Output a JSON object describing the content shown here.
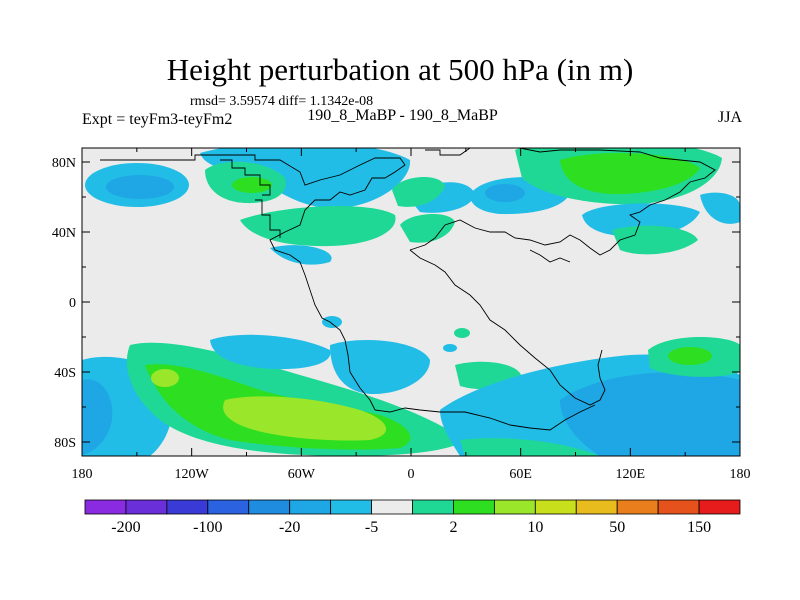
{
  "title": "Height perturbation at 500 hPa (in m)",
  "stats": "rmsd= 3.59574 diff= 1.1342e-08",
  "experiment": "Expt = teyFm3-teyFm2",
  "center_label": "190_8_MaBP - 190_8_MaBP",
  "season": "JJA",
  "y_ticks": [
    {
      "label": "80N",
      "lat": 80
    },
    {
      "label": "40N",
      "lat": 40
    },
    {
      "label": "0",
      "lat": 0
    },
    {
      "label": "40S",
      "lat": -40
    },
    {
      "label": "80S",
      "lat": -80
    }
  ],
  "x_ticks": [
    {
      "label": "180",
      "lon": -180
    },
    {
      "label": "120W",
      "lon": -120
    },
    {
      "label": "60W",
      "lon": -60
    },
    {
      "label": "0",
      "lon": 0
    },
    {
      "label": "60E",
      "lon": 60
    },
    {
      "label": "120E",
      "lon": 120
    },
    {
      "label": "180",
      "lon": 180
    }
  ],
  "colorbar": {
    "colors": [
      "#8a2be2",
      "#6a2fd8",
      "#3a3ad6",
      "#2a62e0",
      "#1f8ce0",
      "#1fa6e4",
      "#22bde6",
      "#ececec",
      "#1fd896",
      "#2ede20",
      "#9ae62a",
      "#c8e01c",
      "#e8bc1c",
      "#e87e1c",
      "#e6521c",
      "#e61c1c"
    ],
    "labels": [
      {
        "text": "-200",
        "index": 1
      },
      {
        "text": "-100",
        "index": 3
      },
      {
        "text": "-20",
        "index": 5
      },
      {
        "text": "-5",
        "index": 7
      },
      {
        "text": "2",
        "index": 9
      },
      {
        "text": "10",
        "index": 11
      },
      {
        "text": "50",
        "index": 13
      },
      {
        "text": "150",
        "index": 15
      }
    ]
  },
  "field_colors": {
    "background": "#ebebeb",
    "neg_weak": "#22bde6",
    "neg_mid": "#1fa6e4",
    "pos_weak": "#1fd896",
    "pos_mid": "#2ede20",
    "pos_strong": "#9ae62a"
  }
}
